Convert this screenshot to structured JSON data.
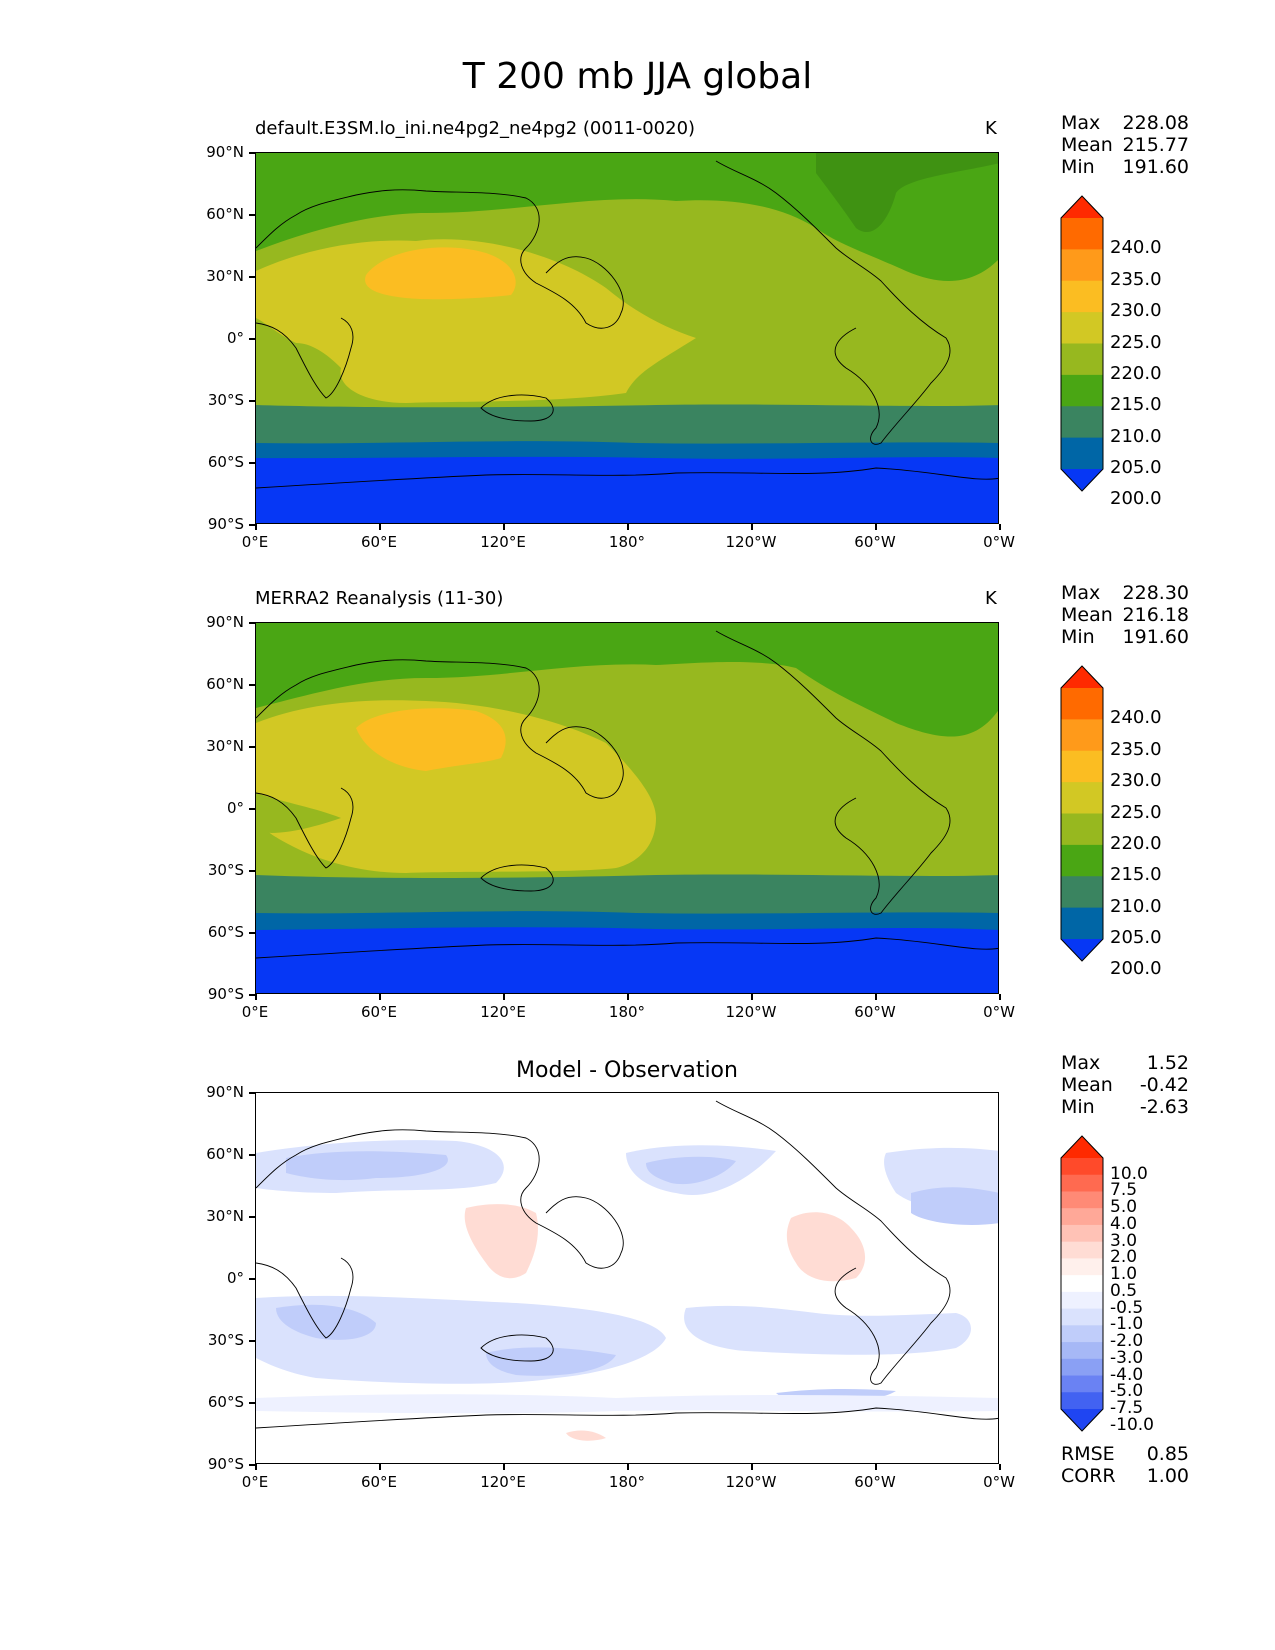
{
  "suptitle": "T 200 mb JJA global",
  "axes": {
    "y_ticks": [
      "90°N",
      "60°N",
      "30°N",
      "0°",
      "30°S",
      "60°S",
      "90°S"
    ],
    "x_ticks": [
      "0°E",
      "60°E",
      "120°E",
      "180°",
      "120°W",
      "60°W",
      "0°W"
    ]
  },
  "panels": [
    {
      "title_left": "default.E3SM.lo_ini.ne4pg2_ne4pg2 (0011-0020)",
      "title_center": "",
      "units": "K",
      "stats": {
        "max_label": "Max",
        "max": "228.08",
        "mean_label": "Mean",
        "mean": "215.77",
        "min_label": "Min",
        "min": "191.60"
      }
    },
    {
      "title_left": "MERRA2 Reanalysis (11-30)",
      "title_center": "",
      "units": "K",
      "stats": {
        "max_label": "Max",
        "max": "228.30",
        "mean_label": "Mean",
        "mean": "216.18",
        "min_label": "Min",
        "min": "191.60"
      }
    },
    {
      "title_left": "",
      "title_center": "Model - Observation",
      "units": "",
      "stats": {
        "max_label": "Max",
        "max": "1.52",
        "mean_label": "Mean",
        "mean": "-0.42",
        "min_label": "Min",
        "min": "-2.63"
      },
      "metrics": {
        "rmse_label": "RMSE",
        "rmse": "0.85",
        "corr_label": "CORR",
        "corr": "1.00"
      }
    }
  ],
  "colorbars": {
    "field": {
      "labels": [
        "240.0",
        "235.0",
        "230.0",
        "225.0",
        "220.0",
        "215.0",
        "210.0",
        "205.0",
        "200.0"
      ],
      "colors_top_to_bottom": [
        "#ff2a00",
        "#ff6a00",
        "#ff9a1a",
        "#fbbd22",
        "#d2c824",
        "#97b81f",
        "#4aa614",
        "#3a8460",
        "#0066a6",
        "#0637f5"
      ]
    },
    "diff": {
      "labels": [
        "10.0",
        "7.5",
        "5.0",
        "4.0",
        "3.0",
        "2.0",
        "1.0",
        "0.5",
        "-0.5",
        "-1.0",
        "-2.0",
        "-3.0",
        "-4.0",
        "-5.0",
        "-7.5",
        "-10.0"
      ],
      "colors_top_to_bottom": [
        "#ff2a00",
        "#ff4a2a",
        "#ff6a50",
        "#ff8a76",
        "#ffa898",
        "#ffc2b6",
        "#ffdcd4",
        "#fff0ec",
        "#ffffff",
        "#eef1ff",
        "#dae2fd",
        "#c0cdfa",
        "#a6b8f6",
        "#8aa0f4",
        "#6a82f3",
        "#4262f2",
        "#1f45f2"
      ]
    }
  }
}
